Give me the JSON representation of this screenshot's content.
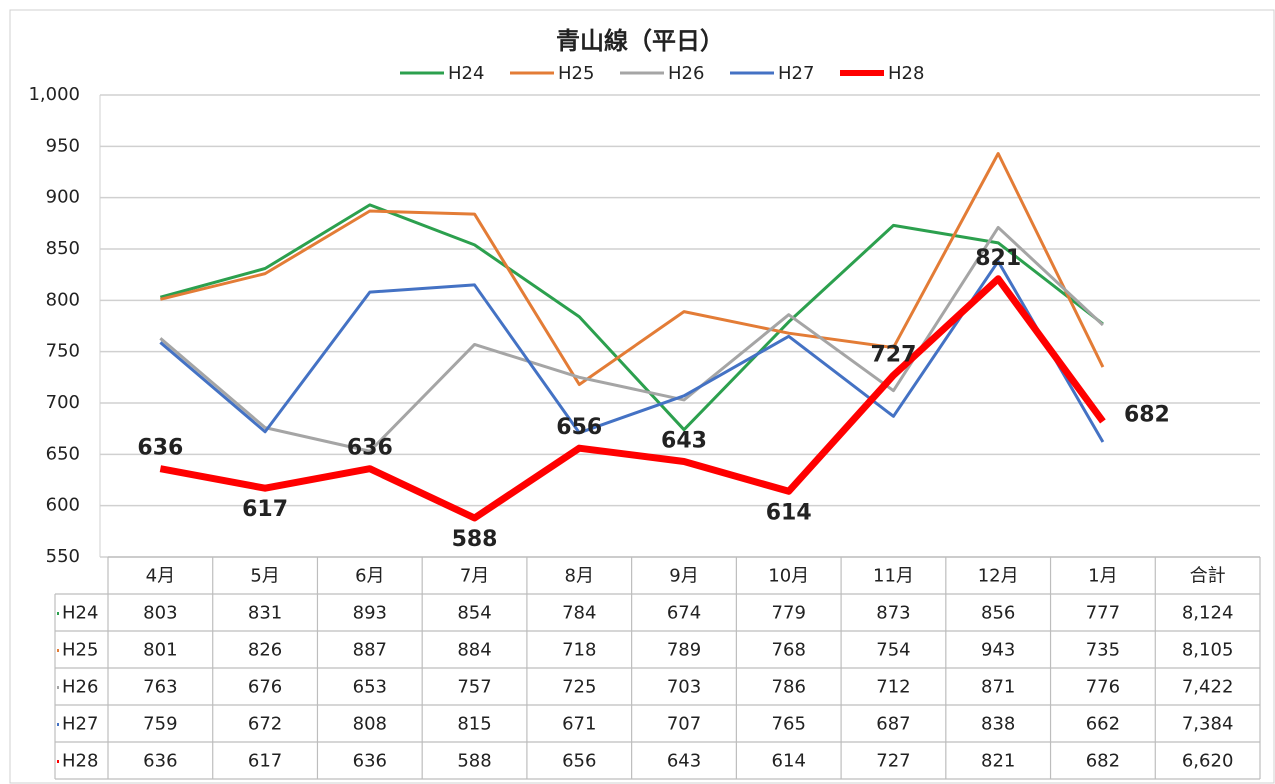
{
  "chart_data": {
    "type": "line",
    "title": "青山線（平日）",
    "categories": [
      "4月",
      "5月",
      "6月",
      "7月",
      "8月",
      "9月",
      "10月",
      "11月",
      "12月",
      "1月"
    ],
    "total_header": "合計",
    "series": [
      {
        "name": "H24",
        "color": "#2ca04e",
        "values": [
          803,
          831,
          893,
          854,
          784,
          674,
          779,
          873,
          856,
          777
        ],
        "total": 8124,
        "total_label": "8,124"
      },
      {
        "name": "H25",
        "color": "#e37c36",
        "values": [
          801,
          826,
          887,
          884,
          718,
          789,
          768,
          754,
          943,
          735
        ],
        "total": 8105,
        "total_label": "8,105"
      },
      {
        "name": "H26",
        "color": "#a5a5a5",
        "values": [
          763,
          676,
          653,
          757,
          725,
          703,
          786,
          712,
          871,
          776
        ],
        "total": 7422,
        "total_label": "7,422"
      },
      {
        "name": "H27",
        "color": "#4472c4",
        "values": [
          759,
          672,
          808,
          815,
          671,
          707,
          765,
          687,
          838,
          662
        ],
        "total": 7384,
        "total_label": "7,384"
      },
      {
        "name": "H28",
        "color": "#ff0000",
        "values": [
          636,
          617,
          636,
          588,
          656,
          643,
          614,
          727,
          821,
          682
        ],
        "total": 6620,
        "total_label": "6,620",
        "data_labels": true
      }
    ],
    "ylim": [
      550,
      1000
    ],
    "yticks": [
      550,
      600,
      650,
      700,
      750,
      800,
      850,
      900,
      950,
      {
        "value": 1000,
        "label": "1,000"
      }
    ],
    "grid": true,
    "legend": "top"
  }
}
